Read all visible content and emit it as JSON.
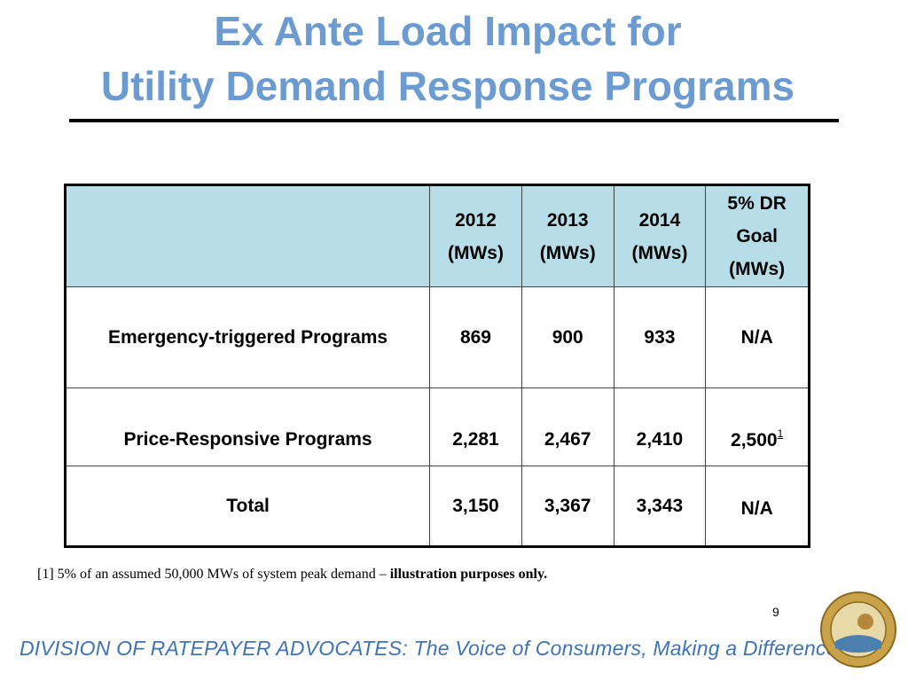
{
  "title": [
    "Ex Ante Load Impact for",
    "Utility Demand Response Programs"
  ],
  "table": {
    "header": [
      [
        "2012",
        "(MWs)"
      ],
      [
        "2013",
        "(MWs)"
      ],
      [
        "2014",
        "(MWs)"
      ],
      [
        "5% DR",
        "Goal",
        "(MWs)"
      ]
    ],
    "rows": [
      {
        "label": "Emergency-triggered Programs",
        "cells": [
          "869",
          "900",
          "933",
          "N/A"
        ]
      },
      {
        "label": "Price-Responsive Programs",
        "cells": [
          "2,281",
          "2,467",
          "2,410",
          "2,500"
        ],
        "note": "1"
      },
      {
        "label": "Total",
        "cells": [
          "3,150",
          "3,367",
          "3,343",
          "N/A"
        ]
      }
    ]
  },
  "footnote": {
    "marker": "[1]",
    "text": "5% of an assumed 50,000 MWs of system peak demand –",
    "emphasis": "illustration purposes only."
  },
  "page_number": "9",
  "footer": "DIVISION OF RATEPAYER ADVOCATES: The Voice of Consumers, Making a Difference!"
}
